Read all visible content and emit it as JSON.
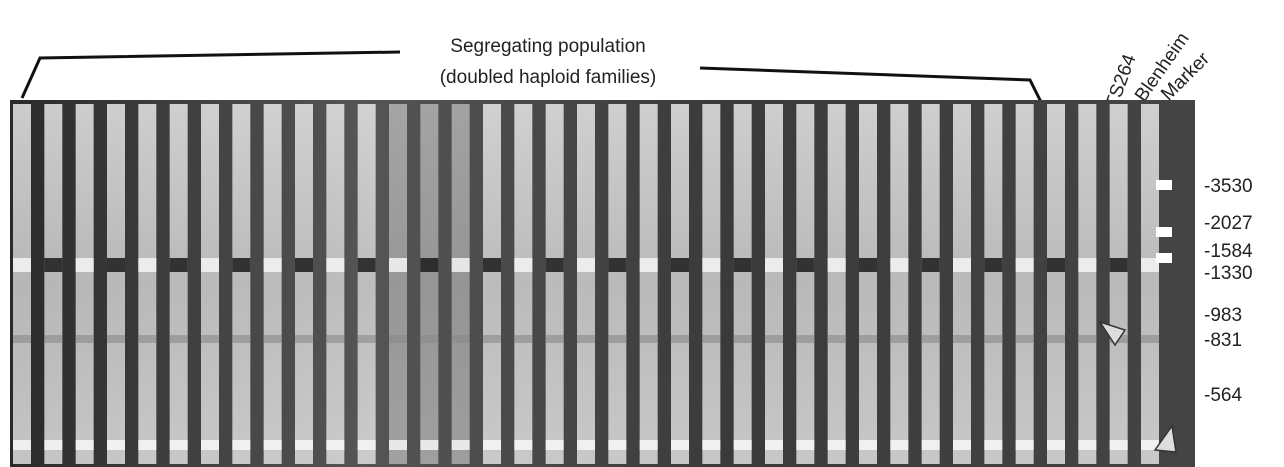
{
  "header": {
    "lines": [
      "Segregating population",
      "(doubled haploid families)"
    ]
  },
  "lane_labels": [
    "TS264",
    "Blenheim",
    "Marker"
  ],
  "marker_sizes": [
    "-3530",
    "-2027",
    "-1584",
    "-1330",
    "-983",
    "-831",
    "-564"
  ]
}
